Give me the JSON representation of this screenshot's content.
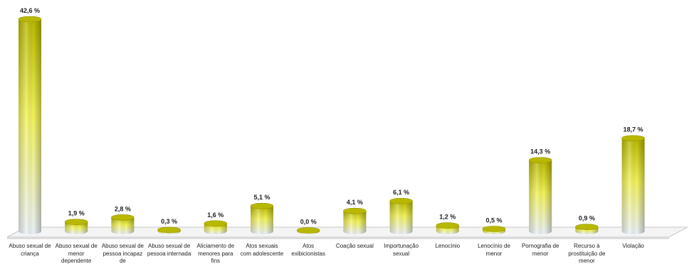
{
  "chart_data": {
    "type": "bar",
    "categories": [
      "Abuso sexual de criança",
      "Abuso sexual de menor dependente",
      "Abuso sexual de pessoa incapaz de",
      "Abuso sexual de pessoa internada",
      "Aliciamento de menores para fins",
      "Atos sexuais com adolescente",
      "Atos exibicionistas",
      "Coação sexual",
      "Importunação sexual",
      "Lenocínio",
      "Lenocínio de menor",
      "Pornografia de menor",
      "Recurso à prostituição de menor",
      "Violação"
    ],
    "values": [
      42.6,
      1.9,
      2.8,
      0.3,
      1.6,
      5.1,
      0.0,
      4.1,
      6.1,
      1.2,
      0.5,
      14.3,
      0.9,
      18.7
    ],
    "value_labels": [
      "42,6 %",
      "1,9 %",
      "2,8 %",
      "0,3 %",
      "1,6 %",
      "5,1 %",
      "0,0 %",
      "4,1 %",
      "6,1 %",
      "1,2 %",
      "0,5 %",
      "14,3 %",
      "0,9 %",
      "18,7 %"
    ],
    "title": "",
    "xlabel": "",
    "ylabel": "",
    "ylim": [
      0,
      42.6
    ],
    "grid": false,
    "legend": "none",
    "style": "3d-cylinder",
    "colors": {
      "bar_top": "#b8b800",
      "bar_light": "#f2f25a",
      "bar_base": "#eaf0f8",
      "floor": "#f4f4f4",
      "floor_edge": "#c9c9c9",
      "label_text": "#222222"
    }
  }
}
